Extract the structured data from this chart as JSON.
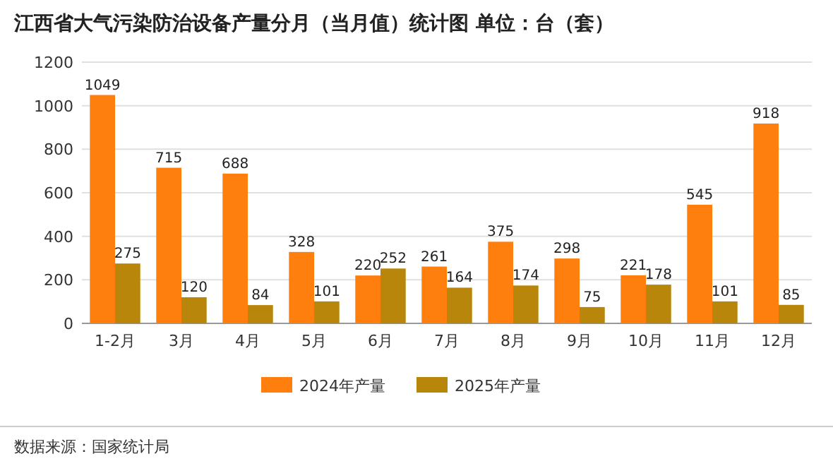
{
  "chart_data": {
    "type": "bar",
    "title": "江西省大气污染防治设备产量分月（当月值）统计图  单位：台（套）",
    "categories": [
      "1-2月",
      "3月",
      "4月",
      "5月",
      "6月",
      "7月",
      "8月",
      "9月",
      "10月",
      "11月",
      "12月"
    ],
    "series": [
      {
        "name": "2024年产量",
        "color": "#ff7f0e",
        "values": [
          1049,
          715,
          688,
          328,
          220,
          261,
          375,
          298,
          221,
          545,
          918
        ]
      },
      {
        "name": "2025年产量",
        "color": "#b8860b",
        "values": [
          275,
          120,
          84,
          101,
          252,
          164,
          174,
          75,
          178,
          101,
          85
        ]
      }
    ],
    "ylim": [
      0,
      1200
    ],
    "yticks": [
      0,
      200,
      400,
      600,
      800,
      1000,
      1200
    ],
    "grid": "y",
    "legend": "bottom",
    "data_labels": true,
    "annotations": [
      "数据来源：国家统计局"
    ]
  }
}
